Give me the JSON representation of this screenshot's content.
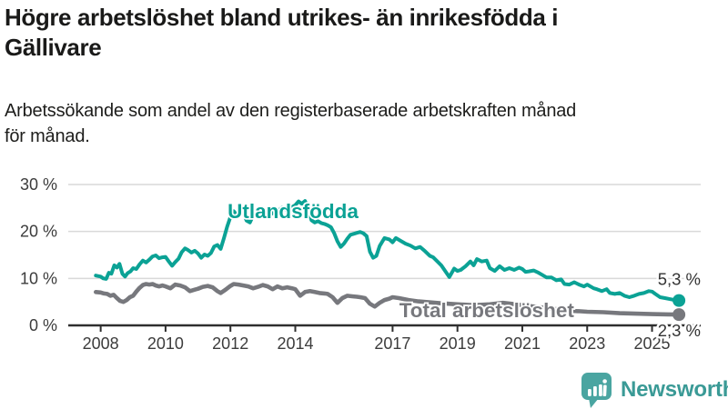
{
  "header": {
    "title_lines": [
      "Högre arbetslöshet bland utrikes- än inrikesfödda i",
      "Gällivare"
    ],
    "subtitle_lines": [
      "Arbetssökande som andel av den registerbaserade arbetskraften månad",
      "för månad."
    ]
  },
  "chart_data": {
    "type": "line",
    "title": "Högre arbetslöshet bland utrikes- än inrikesfödda i Gällivare",
    "subtitle": "Arbetssökande som andel av den registerbaserade arbetskraften månad för månad.",
    "unit": "%",
    "xlim": [
      2007.0,
      2026.5
    ],
    "ylim": [
      0,
      30
    ],
    "grid": "horizontal",
    "y_ticks": [
      {
        "value": 30,
        "label": "30 %"
      },
      {
        "value": 20,
        "label": "20 %"
      },
      {
        "value": 10,
        "label": "10 %"
      },
      {
        "value": 0,
        "label": "0 %"
      }
    ],
    "x_ticks": [
      {
        "value": 2008,
        "label": "2008"
      },
      {
        "value": 2010,
        "label": "2010"
      },
      {
        "value": 2012,
        "label": "2012"
      },
      {
        "value": 2014,
        "label": "2014"
      },
      {
        "value": 2017,
        "label": "2017"
      },
      {
        "value": 2019,
        "label": "2019"
      },
      {
        "value": 2021,
        "label": "2021"
      },
      {
        "value": 2023,
        "label": "2023"
      },
      {
        "value": 2025,
        "label": "2025"
      }
    ],
    "series_labels": [
      {
        "text": "Utlandsfödda",
        "x": 2013.93,
        "y": 22.8,
        "color": "#0ba295"
      },
      {
        "text": "Total arbetslöshet",
        "x": 2019.9,
        "y": 1.75,
        "color": "#77787d"
      }
    ],
    "series": [
      {
        "name": "Utlandsfödda",
        "color": "#0ba295",
        "end_label": "5,3 %",
        "end_label_side": "above",
        "points": [
          [
            2007.85,
            10.6
          ],
          [
            2008.0,
            10.4
          ],
          [
            2008.08,
            10.0
          ],
          [
            2008.17,
            9.9
          ],
          [
            2008.25,
            11.2
          ],
          [
            2008.33,
            11.0
          ],
          [
            2008.42,
            12.8
          ],
          [
            2008.5,
            12.3
          ],
          [
            2008.58,
            13.1
          ],
          [
            2008.67,
            11.0
          ],
          [
            2008.75,
            10.4
          ],
          [
            2008.83,
            11.1
          ],
          [
            2008.92,
            11.5
          ],
          [
            2009.0,
            12.2
          ],
          [
            2009.1,
            12.0
          ],
          [
            2009.2,
            13.0
          ],
          [
            2009.3,
            13.8
          ],
          [
            2009.4,
            13.4
          ],
          [
            2009.5,
            14.0
          ],
          [
            2009.6,
            14.7
          ],
          [
            2009.7,
            14.9
          ],
          [
            2009.8,
            14.3
          ],
          [
            2009.9,
            14.5
          ],
          [
            2010.0,
            14.6
          ],
          [
            2010.1,
            13.6
          ],
          [
            2010.2,
            12.7
          ],
          [
            2010.3,
            13.5
          ],
          [
            2010.4,
            14.2
          ],
          [
            2010.5,
            15.6
          ],
          [
            2010.6,
            16.4
          ],
          [
            2010.7,
            16.0
          ],
          [
            2010.8,
            15.5
          ],
          [
            2010.9,
            15.9
          ],
          [
            2011.0,
            15.3
          ],
          [
            2011.1,
            14.4
          ],
          [
            2011.2,
            15.1
          ],
          [
            2011.3,
            14.8
          ],
          [
            2011.4,
            15.4
          ],
          [
            2011.5,
            16.8
          ],
          [
            2011.6,
            17.1
          ],
          [
            2011.7,
            16.3
          ],
          [
            2011.8,
            18.6
          ],
          [
            2011.9,
            21.0
          ],
          [
            2012.0,
            23.1
          ],
          [
            2012.1,
            24.3
          ],
          [
            2012.2,
            23.5
          ],
          [
            2012.3,
            24.7
          ],
          [
            2012.4,
            23.9
          ],
          [
            2012.5,
            22.3
          ],
          [
            2012.6,
            21.9
          ],
          [
            2012.7,
            23.4
          ],
          [
            2012.8,
            23.9
          ],
          [
            2012.9,
            23.4
          ],
          [
            2013.0,
            23.6
          ],
          [
            2013.15,
            23.2
          ],
          [
            2013.3,
            23.9
          ],
          [
            2013.45,
            24.3
          ],
          [
            2013.6,
            25.1
          ],
          [
            2013.75,
            24.5
          ],
          [
            2013.9,
            25.2
          ],
          [
            2014.0,
            25.6
          ],
          [
            2014.1,
            26.4
          ],
          [
            2014.2,
            25.9
          ],
          [
            2014.3,
            26.5
          ],
          [
            2014.4,
            24.9
          ],
          [
            2014.5,
            22.4
          ],
          [
            2014.6,
            21.9
          ],
          [
            2014.7,
            22.2
          ],
          [
            2014.8,
            21.8
          ],
          [
            2014.9,
            21.6
          ],
          [
            2015.0,
            21.3
          ],
          [
            2015.1,
            20.9
          ],
          [
            2015.2,
            19.6
          ],
          [
            2015.3,
            17.9
          ],
          [
            2015.4,
            16.7
          ],
          [
            2015.5,
            17.4
          ],
          [
            2015.6,
            18.4
          ],
          [
            2015.7,
            19.3
          ],
          [
            2015.8,
            19.5
          ],
          [
            2015.9,
            19.7
          ],
          [
            2016.0,
            19.9
          ],
          [
            2016.1,
            19.6
          ],
          [
            2016.2,
            19.0
          ],
          [
            2016.3,
            15.7
          ],
          [
            2016.4,
            14.4
          ],
          [
            2016.5,
            14.8
          ],
          [
            2016.6,
            16.9
          ],
          [
            2016.75,
            18.6
          ],
          [
            2016.9,
            18.3
          ],
          [
            2017.0,
            17.7
          ],
          [
            2017.1,
            18.6
          ],
          [
            2017.25,
            18.0
          ],
          [
            2017.4,
            17.4
          ],
          [
            2017.55,
            17.0
          ],
          [
            2017.7,
            16.4
          ],
          [
            2017.85,
            16.7
          ],
          [
            2018.0,
            15.8
          ],
          [
            2018.15,
            14.8
          ],
          [
            2018.25,
            14.5
          ],
          [
            2018.4,
            13.5
          ],
          [
            2018.5,
            12.8
          ],
          [
            2018.65,
            11.3
          ],
          [
            2018.75,
            10.3
          ],
          [
            2018.9,
            12.1
          ],
          [
            2019.0,
            11.6
          ],
          [
            2019.1,
            11.8
          ],
          [
            2019.25,
            12.6
          ],
          [
            2019.4,
            13.6
          ],
          [
            2019.5,
            12.8
          ],
          [
            2019.6,
            14.1
          ],
          [
            2019.75,
            13.6
          ],
          [
            2019.9,
            13.8
          ],
          [
            2020.0,
            12.2
          ],
          [
            2020.15,
            11.6
          ],
          [
            2020.3,
            12.6
          ],
          [
            2020.45,
            11.8
          ],
          [
            2020.6,
            12.2
          ],
          [
            2020.75,
            11.8
          ],
          [
            2020.9,
            12.3
          ],
          [
            2021.0,
            12.0
          ],
          [
            2021.1,
            11.4
          ],
          [
            2021.2,
            11.5
          ],
          [
            2021.35,
            11.7
          ],
          [
            2021.5,
            11.2
          ],
          [
            2021.6,
            10.8
          ],
          [
            2021.75,
            10.2
          ],
          [
            2021.9,
            10.2
          ],
          [
            2022.05,
            9.6
          ],
          [
            2022.2,
            9.8
          ],
          [
            2022.3,
            8.8
          ],
          [
            2022.45,
            8.7
          ],
          [
            2022.6,
            9.2
          ],
          [
            2022.75,
            8.7
          ],
          [
            2022.9,
            8.3
          ],
          [
            2023.0,
            8.7
          ],
          [
            2023.2,
            7.9
          ],
          [
            2023.3,
            7.7
          ],
          [
            2023.45,
            7.3
          ],
          [
            2023.6,
            7.7
          ],
          [
            2023.7,
            6.9
          ],
          [
            2023.85,
            6.7
          ],
          [
            2024.0,
            6.9
          ],
          [
            2024.15,
            6.3
          ],
          [
            2024.3,
            6.0
          ],
          [
            2024.45,
            6.3
          ],
          [
            2024.6,
            6.7
          ],
          [
            2024.75,
            6.9
          ],
          [
            2024.9,
            7.3
          ],
          [
            2025.0,
            7.2
          ],
          [
            2025.1,
            6.7
          ],
          [
            2025.25,
            6.0
          ],
          [
            2025.4,
            5.8
          ],
          [
            2025.55,
            5.6
          ],
          [
            2025.7,
            5.4
          ],
          [
            2025.83,
            5.3
          ]
        ]
      },
      {
        "name": "Total arbetslöshet",
        "color": "#77787d",
        "end_label": "2,3 %",
        "end_label_side": "below",
        "points": [
          [
            2007.85,
            7.1
          ],
          [
            2008.0,
            7.0
          ],
          [
            2008.1,
            6.8
          ],
          [
            2008.2,
            6.7
          ],
          [
            2008.3,
            6.3
          ],
          [
            2008.4,
            6.5
          ],
          [
            2008.5,
            5.8
          ],
          [
            2008.6,
            5.2
          ],
          [
            2008.7,
            5.0
          ],
          [
            2008.8,
            5.4
          ],
          [
            2008.9,
            6.0
          ],
          [
            2009.0,
            6.3
          ],
          [
            2009.1,
            7.2
          ],
          [
            2009.2,
            8.0
          ],
          [
            2009.3,
            8.6
          ],
          [
            2009.4,
            8.8
          ],
          [
            2009.5,
            8.7
          ],
          [
            2009.6,
            8.8
          ],
          [
            2009.7,
            8.5
          ],
          [
            2009.8,
            8.3
          ],
          [
            2009.9,
            8.5
          ],
          [
            2010.0,
            8.3
          ],
          [
            2010.15,
            7.9
          ],
          [
            2010.3,
            8.7
          ],
          [
            2010.45,
            8.5
          ],
          [
            2010.6,
            8.1
          ],
          [
            2010.75,
            7.3
          ],
          [
            2010.9,
            7.6
          ],
          [
            2011.0,
            7.8
          ],
          [
            2011.15,
            8.2
          ],
          [
            2011.3,
            8.4
          ],
          [
            2011.45,
            8.1
          ],
          [
            2011.6,
            7.3
          ],
          [
            2011.7,
            6.9
          ],
          [
            2011.85,
            7.6
          ],
          [
            2012.0,
            8.4
          ],
          [
            2012.1,
            8.8
          ],
          [
            2012.25,
            8.7
          ],
          [
            2012.4,
            8.5
          ],
          [
            2012.55,
            8.3
          ],
          [
            2012.7,
            7.9
          ],
          [
            2012.85,
            8.2
          ],
          [
            2013.0,
            8.6
          ],
          [
            2013.15,
            8.3
          ],
          [
            2013.3,
            7.7
          ],
          [
            2013.45,
            8.3
          ],
          [
            2013.6,
            7.9
          ],
          [
            2013.75,
            8.1
          ],
          [
            2013.9,
            7.9
          ],
          [
            2014.0,
            7.7
          ],
          [
            2014.15,
            6.3
          ],
          [
            2014.3,
            7.1
          ],
          [
            2014.45,
            7.3
          ],
          [
            2014.6,
            7.1
          ],
          [
            2014.75,
            6.9
          ],
          [
            2014.9,
            6.8
          ],
          [
            2015.0,
            6.7
          ],
          [
            2015.15,
            6.0
          ],
          [
            2015.3,
            4.8
          ],
          [
            2015.45,
            5.8
          ],
          [
            2015.6,
            6.3
          ],
          [
            2015.75,
            6.2
          ],
          [
            2015.9,
            6.1
          ],
          [
            2016.0,
            6.0
          ],
          [
            2016.15,
            5.8
          ],
          [
            2016.3,
            4.6
          ],
          [
            2016.45,
            4.0
          ],
          [
            2016.6,
            4.8
          ],
          [
            2016.75,
            5.4
          ],
          [
            2016.9,
            5.7
          ],
          [
            2017.0,
            6.0
          ],
          [
            2017.2,
            5.8
          ],
          [
            2017.5,
            5.4
          ],
          [
            2017.8,
            5.1
          ],
          [
            2018.0,
            5.0
          ],
          [
            2018.5,
            4.7
          ],
          [
            2019.0,
            4.5
          ],
          [
            2019.5,
            4.3
          ],
          [
            2020.0,
            4.5
          ],
          [
            2020.4,
            4.8
          ],
          [
            2020.8,
            4.5
          ],
          [
            2021.0,
            4.3
          ],
          [
            2021.5,
            3.9
          ],
          [
            2022.0,
            3.5
          ],
          [
            2022.5,
            3.1
          ],
          [
            2022.8,
            3.0
          ],
          [
            2023.0,
            2.9
          ],
          [
            2023.5,
            2.8
          ],
          [
            2024.0,
            2.6
          ],
          [
            2024.5,
            2.5
          ],
          [
            2025.0,
            2.4
          ],
          [
            2025.5,
            2.35
          ],
          [
            2025.83,
            2.3
          ]
        ]
      }
    ]
  },
  "footer": {
    "brand": "Newsworthy"
  },
  "colors": {
    "accent_teal": "#0ba295",
    "series_gray": "#77787d",
    "grid": "#d9d9d9",
    "axis": "#2e2e2e",
    "tick_text": "#3c3c3c",
    "end_label_text": "#333333",
    "logo_teal": "#4aa5a1",
    "brand_text": "#3a9a96"
  }
}
